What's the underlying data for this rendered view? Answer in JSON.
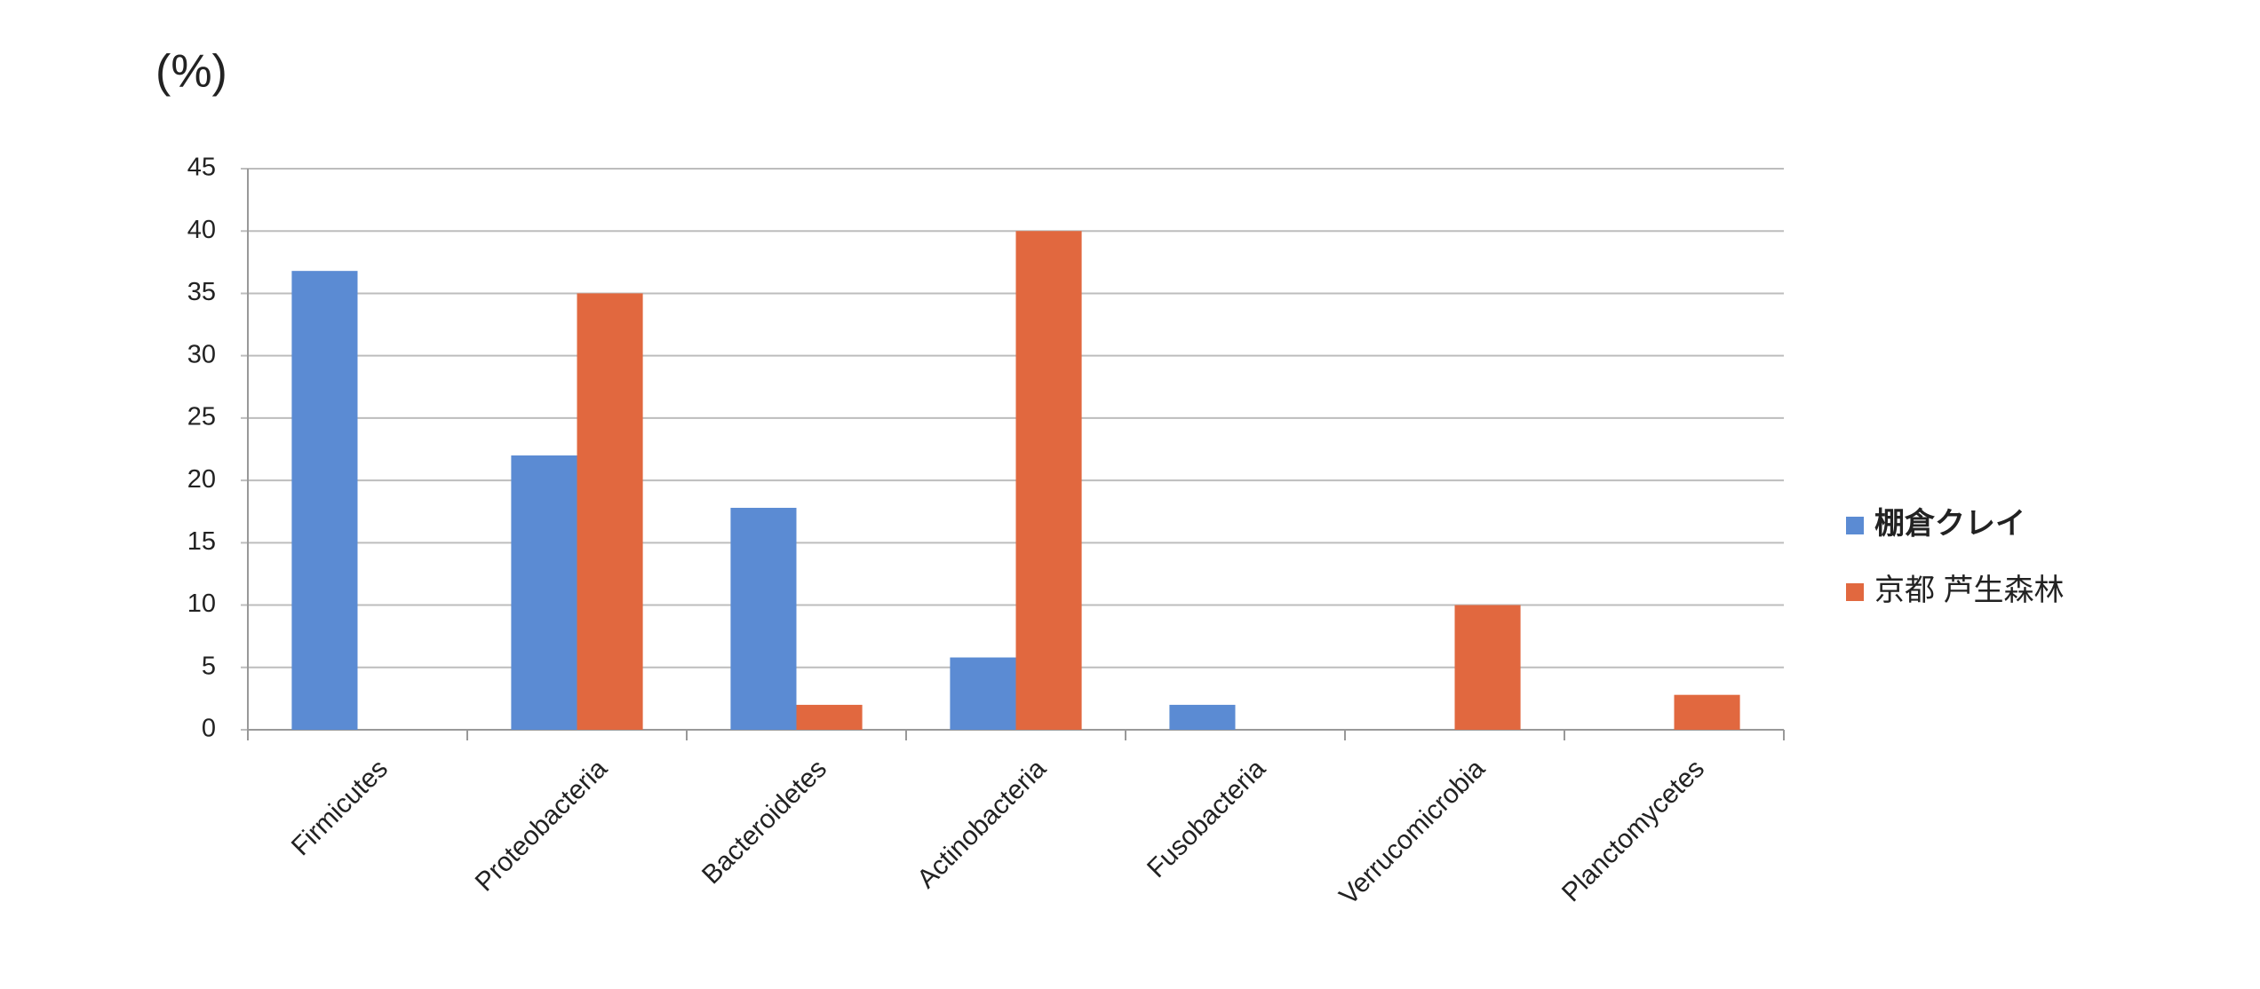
{
  "chart_data": {
    "type": "bar",
    "y_label": "(%)",
    "categories": [
      "Firmicutes",
      "Proteobacteria",
      "Bacteroidetes",
      "Actinobacteria",
      "Fusobacteria",
      "Verrucomicrobia",
      "Planctomycetes"
    ],
    "series": [
      {
        "name": "棚倉クレイ",
        "color": "#5b8bd3",
        "values": [
          36.8,
          22,
          17.8,
          5.8,
          2,
          0,
          0
        ]
      },
      {
        "name": "京都 芦生森林",
        "color": "#e1683f",
        "values": [
          0,
          35,
          2,
          40,
          0,
          10,
          2.8
        ]
      }
    ],
    "ylim": [
      0,
      45
    ],
    "yticks": [
      0,
      5,
      10,
      15,
      20,
      25,
      30,
      35,
      40,
      45
    ],
    "grid": true,
    "legend": "right"
  }
}
